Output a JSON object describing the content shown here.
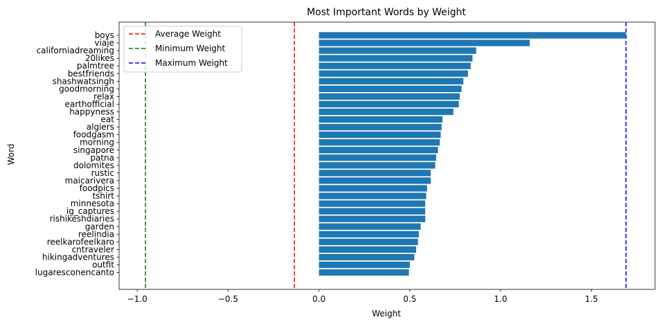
{
  "chart_data": {
    "type": "bar",
    "orientation": "horizontal",
    "title": "Most Important Words by Weight",
    "xlabel": "Weight",
    "ylabel": "Word",
    "xlim": [
      -1.1,
      1.85
    ],
    "xticks": [
      -1.0,
      -0.5,
      0.0,
      0.5,
      1.0,
      1.5
    ],
    "xtick_labels": [
      "−1.0",
      "−0.5",
      "0.0",
      "0.5",
      "1.0",
      "1.5"
    ],
    "grid": false,
    "legend_position": "top-left",
    "bar_color": "#1f77b4",
    "categories": [
      "boys",
      "viaje",
      "californiadreaming",
      "20likes",
      "palmtree",
      "bestfriends",
      "shashwatsingh",
      "goodmorning",
      "relax",
      "earthofficial",
      "happyness",
      "eat",
      "algiers",
      "foodgasm",
      "morning",
      "singapore",
      "patna",
      "dolomites",
      "rustic",
      "maicarivera",
      "foodpics",
      "tshirt",
      "minnesota",
      "ig_captures",
      "rishikeshdiaries",
      "garden",
      "reelindia",
      "reelkarofeelkaro",
      "cntraveler",
      "hikingadventures",
      "outfit",
      "lugaresconencanto"
    ],
    "values": [
      1.69,
      1.16,
      0.865,
      0.845,
      0.835,
      0.82,
      0.795,
      0.785,
      0.775,
      0.77,
      0.74,
      0.68,
      0.675,
      0.67,
      0.665,
      0.655,
      0.645,
      0.64,
      0.615,
      0.615,
      0.595,
      0.59,
      0.585,
      0.585,
      0.585,
      0.56,
      0.55,
      0.545,
      0.535,
      0.525,
      0.5,
      0.495
    ],
    "reference_lines": [
      {
        "name": "Average Weight",
        "value": -0.135,
        "color": "#ff0000"
      },
      {
        "name": "Minimum Weight",
        "value": -0.955,
        "color": "#008000"
      },
      {
        "name": "Maximum Weight",
        "value": 1.69,
        "color": "#0000ff"
      }
    ]
  }
}
